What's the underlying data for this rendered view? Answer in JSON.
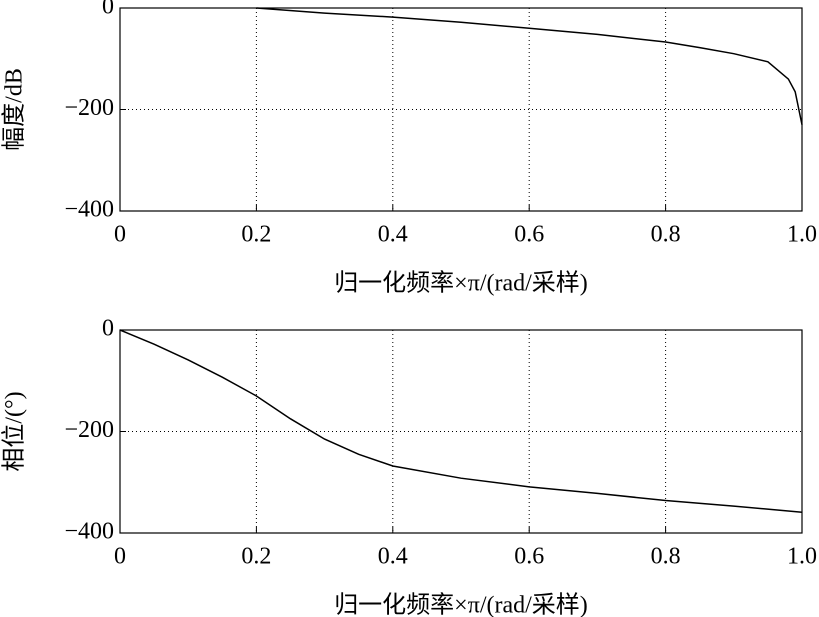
{
  "chart_data": [
    {
      "type": "line",
      "ylabel": "幅度/dB",
      "xlabel": "归一化频率×π/(rad/采样)",
      "x": [
        0.2,
        0.3,
        0.4,
        0.5,
        0.6,
        0.7,
        0.8,
        0.85,
        0.9,
        0.95,
        0.98,
        0.99,
        1
      ],
      "values": [
        0,
        -10,
        -18,
        -28,
        -40,
        -52,
        -67,
        -78,
        -90,
        -106,
        -140,
        -165,
        -230
      ],
      "color": "#000000",
      "xlim": [
        0,
        1
      ],
      "xticks": [
        0,
        0.2,
        0.4,
        0.6,
        0.8,
        {
          "value": 1,
          "label": "1.0"
        }
      ],
      "ylim": [
        -400,
        0
      ],
      "yticks": [
        {
          "value": -400,
          "label": "−400"
        },
        {
          "value": -200,
          "label": "−200"
        },
        0
      ],
      "grid": true
    },
    {
      "type": "line",
      "ylabel": "相位/(°)",
      "xlabel": "归一化频率×π/(rad/采样)",
      "x": [
        0,
        0.05,
        0.1,
        0.15,
        0.2,
        0.25,
        0.3,
        0.35,
        0.4,
        0.5,
        0.6,
        0.7,
        0.8,
        0.9,
        1
      ],
      "values": [
        0,
        -28,
        -59,
        -93,
        -130,
        -175,
        -215,
        -245,
        -268,
        -292,
        -309,
        -322,
        -336,
        -347,
        -359
      ],
      "color": "#000000",
      "xlim": [
        0,
        1
      ],
      "xticks": [
        0,
        0.2,
        0.4,
        0.6,
        0.8,
        {
          "value": 1,
          "label": "1.0"
        }
      ],
      "ylim": [
        -400,
        0
      ],
      "yticks": [
        {
          "value": -400,
          "label": "−400"
        },
        {
          "value": -200,
          "label": "−200"
        },
        0
      ],
      "grid": true
    }
  ]
}
